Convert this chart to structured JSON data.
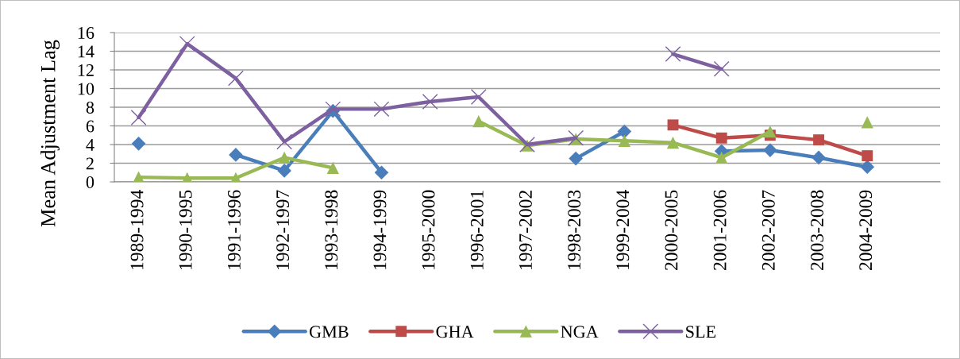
{
  "chart_data": {
    "type": "line",
    "ylabel": "Mean Adjustment Lag",
    "categories": [
      "1989-1994",
      "1990-1995",
      "1991-1996",
      "1992-1997",
      "1993-1998",
      "1994-1999",
      "1995-2000",
      "1996-2001",
      "1997-2002",
      "1998-2003",
      "1999-2004",
      "2000-2005",
      "2001-2006",
      "2002-2007",
      "2003-2008",
      "2004-2009",
      null
    ],
    "series": [
      {
        "name": "GMB",
        "color": "#4a7ebb",
        "marker": "diamond",
        "values": [
          4.1,
          null,
          2.9,
          1.2,
          7.6,
          1.0,
          null,
          null,
          null,
          2.5,
          5.4,
          null,
          3.3,
          3.4,
          2.6,
          1.6,
          null
        ]
      },
      {
        "name": "GHA",
        "color": "#be4b48",
        "marker": "square",
        "values": [
          null,
          null,
          null,
          null,
          null,
          null,
          null,
          null,
          null,
          null,
          null,
          6.1,
          4.7,
          5.0,
          4.5,
          2.8,
          null
        ]
      },
      {
        "name": "NGA",
        "color": "#98b954",
        "marker": "triangle",
        "values": [
          0.5,
          0.4,
          0.4,
          2.6,
          1.5,
          null,
          null,
          6.5,
          3.9,
          4.6,
          4.4,
          4.2,
          2.6,
          5.4,
          null,
          6.4,
          null
        ]
      },
      {
        "name": "SLE",
        "color": "#7d60a0",
        "marker": "cross",
        "values": [
          6.9,
          14.8,
          11.1,
          4.3,
          7.8,
          7.8,
          8.6,
          9.1,
          4.0,
          4.7,
          null,
          13.7,
          12.1,
          null,
          null,
          null,
          null
        ]
      }
    ],
    "ylim": [
      0,
      16
    ],
    "yticks": [
      0,
      2,
      4,
      6,
      8,
      10,
      12,
      14,
      16
    ],
    "grid": "y",
    "legend": "bottom",
    "line_style": "solid"
  }
}
